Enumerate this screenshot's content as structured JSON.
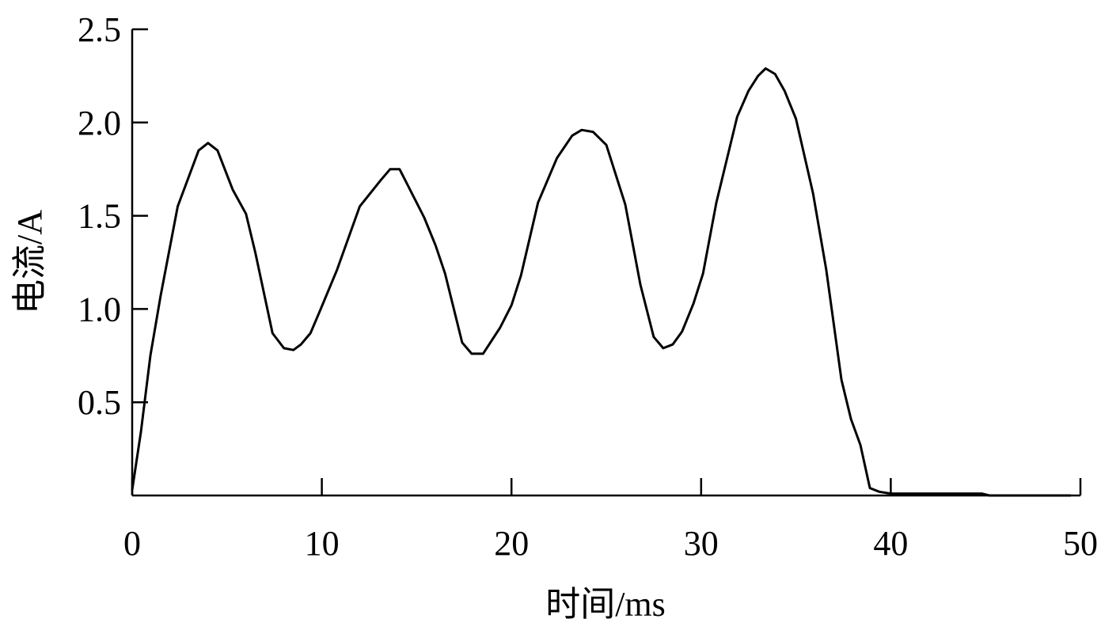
{
  "chart_data": {
    "type": "line",
    "xlabel": "时间/ms",
    "ylabel": "电流/A",
    "x": [
      0,
      0.46,
      0.96,
      1.5,
      2.4,
      3.5,
      4.0,
      4.5,
      5.3,
      6.0,
      6.5,
      7.4,
      8.0,
      8.5,
      8.9,
      9.4,
      9.9,
      10.8,
      12.0,
      13.1,
      13.6,
      14.1,
      14.5,
      15.4,
      16.0,
      16.5,
      17.4,
      17.9,
      18.5,
      19.4,
      20.0,
      20.5,
      21.4,
      22.4,
      23.2,
      23.7,
      24.3,
      25.0,
      26.0,
      26.8,
      27.5,
      28.0,
      28.5,
      29.0,
      29.6,
      30.1,
      30.8,
      31.9,
      32.5,
      33.0,
      33.4,
      33.9,
      34.4,
      35.0,
      35.9,
      36.6,
      37.4,
      37.9,
      38.4,
      38.9,
      39.4,
      40.0,
      44.8,
      45.2,
      47.3,
      49.5
    ],
    "series": [
      {
        "name": "电流",
        "color": "#000000",
        "values": [
          0.03,
          0.34,
          0.75,
          1.07,
          1.55,
          1.85,
          1.89,
          1.85,
          1.64,
          1.51,
          1.3,
          0.87,
          0.79,
          0.78,
          0.81,
          0.87,
          0.99,
          1.21,
          1.55,
          1.69,
          1.75,
          1.75,
          1.67,
          1.49,
          1.34,
          1.19,
          0.82,
          0.76,
          0.76,
          0.9,
          1.02,
          1.18,
          1.57,
          1.81,
          1.93,
          1.96,
          1.95,
          1.88,
          1.56,
          1.13,
          0.85,
          0.79,
          0.81,
          0.88,
          1.03,
          1.19,
          1.57,
          2.03,
          2.17,
          2.25,
          2.29,
          2.26,
          2.17,
          2.02,
          1.62,
          1.21,
          0.62,
          0.41,
          0.27,
          0.04,
          0.02,
          0.01,
          0.01,
          0,
          0,
          0
        ]
      }
    ],
    "xlim": [
      0,
      50
    ],
    "xticks": [
      0,
      10,
      20,
      30,
      40,
      50
    ],
    "ylim": [
      0,
      2.5
    ],
    "yticks": [
      0.5,
      {
        "value": 1,
        "label": "1.0"
      },
      1.5,
      {
        "value": 2,
        "label": "2.0"
      },
      2.5
    ],
    "grid": false
  }
}
